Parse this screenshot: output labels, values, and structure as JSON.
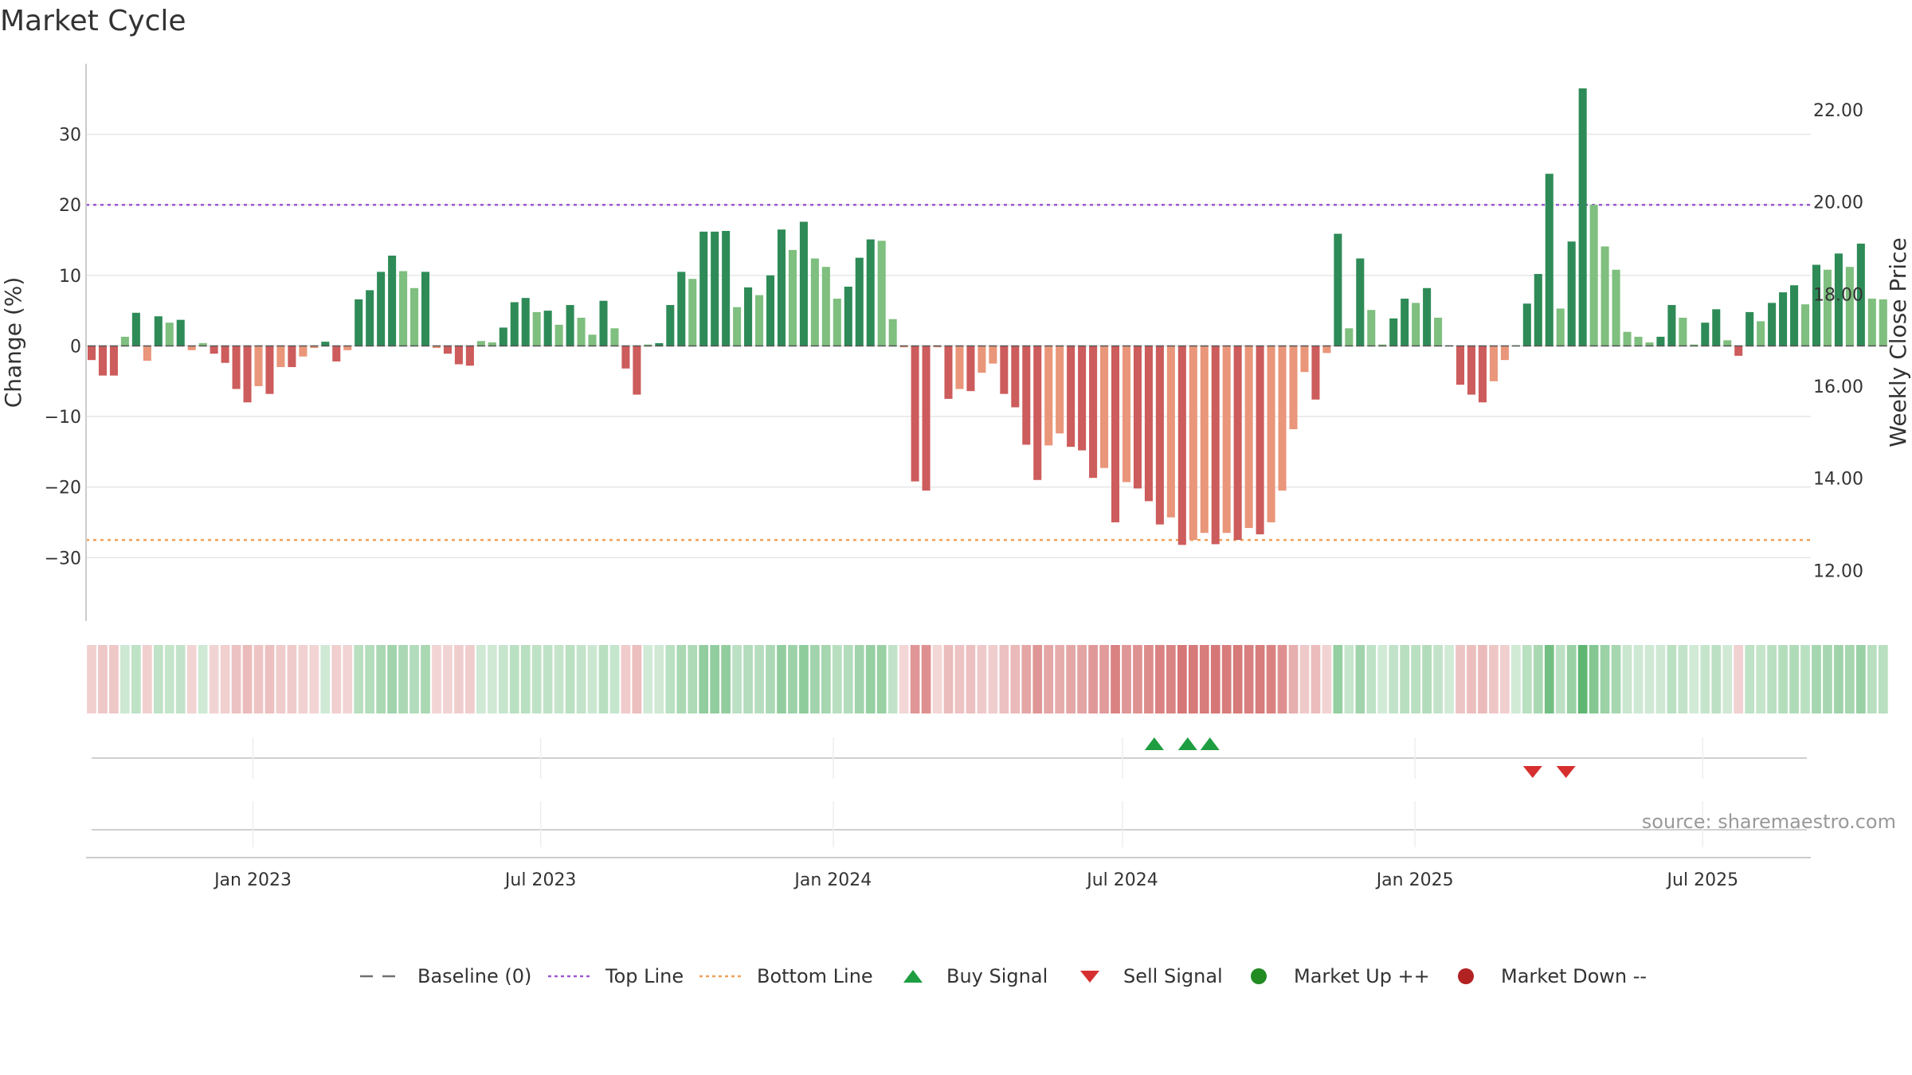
{
  "chart_data": {
    "type": "bar",
    "title": "Market Cycle",
    "ylabel_left": "Change (%)",
    "ylabel_right": "Weekly Close Price",
    "ylim": [
      -39,
      40
    ],
    "yticks": [
      30,
      20,
      10,
      0,
      -10,
      -20,
      -30
    ],
    "ytick_labels": [
      "30",
      "20",
      "10",
      "0",
      "−10",
      "−20",
      "−30"
    ],
    "y2lim": [
      10.9,
      23.0
    ],
    "y2ticks": [
      22,
      20,
      18,
      16,
      14,
      12
    ],
    "y2tick_labels": [
      "22.00",
      "20.00",
      "18.00",
      "16.00",
      "14.00",
      "12.00"
    ],
    "top_line": 20,
    "bottom_line": -27.5,
    "x_start": "2022-09-18",
    "x_end": "2025-09-07",
    "xticks": [
      {
        "date": "2023-01-01",
        "label": "Jan 2023"
      },
      {
        "date": "2023-07-01",
        "label": "Jul 2023"
      },
      {
        "date": "2024-01-01",
        "label": "Jan 2024"
      },
      {
        "date": "2024-07-01",
        "label": "Jul 2024"
      },
      {
        "date": "2025-01-01",
        "label": "Jan 2025"
      },
      {
        "date": "2025-07-01",
        "label": "Jul 2025"
      }
    ],
    "first_week": "2022-09-18",
    "weekly_change": [
      -2,
      -4.2,
      -4.2,
      1.3,
      4.7,
      -2.1,
      4.2,
      3.3,
      3.7,
      -0.6,
      0.4,
      -1.1,
      -2.4,
      -6.1,
      -8.0,
      -5.7,
      -6.8,
      -3.0,
      -3.0,
      -1.5,
      -0.3,
      0.6,
      -2.2,
      -0.6,
      6.6,
      7.9,
      10.5,
      12.8,
      10.6,
      8.2,
      10.5,
      -0.3,
      -1.1,
      -2.6,
      -2.8,
      0.7,
      0.5,
      2.6,
      6.2,
      6.8,
      4.8,
      5.0,
      3.0,
      5.8,
      4.0,
      1.6,
      6.4,
      2.5,
      -3.2,
      -6.9,
      0.2,
      0.4,
      5.8,
      10.5,
      9.5,
      16.2,
      16.2,
      16.3,
      5.5,
      8.3,
      7.2,
      10.0,
      16.5,
      13.6,
      17.6,
      12.4,
      11.2,
      6.7,
      8.4,
      12.5,
      15.1,
      14.9,
      3.8,
      -0.2,
      -19.2,
      -20.5,
      -0.2,
      -7.5,
      -6.1,
      -6.4,
      -3.8,
      -2.5,
      -6.8,
      -8.7,
      -14.0,
      -19.0,
      -14.1,
      -12.4,
      -14.3,
      -14.8,
      -18.7,
      -17.3,
      -25.0,
      -19.3,
      -20.2,
      -22.0,
      -25.3,
      -24.3,
      -28.2,
      -27.5,
      -26.5,
      -28.1,
      -26.5,
      -27.5,
      -25.8,
      -26.7,
      -25.0,
      -20.5,
      -11.8,
      -3.7,
      -7.6,
      -1.0,
      15.9,
      2.5,
      12.4,
      5.1,
      0.2,
      3.9,
      6.7,
      6.1,
      8.2,
      4.0,
      0.1,
      -5.5,
      -6.9,
      -8.0,
      -5.0,
      -2.0,
      0.1,
      6.0,
      10.2,
      24.4,
      5.3,
      14.8,
      36.5,
      20.0,
      14.1,
      10.8,
      2.0,
      1.3,
      0.5,
      1.3,
      5.8,
      4.0,
      0.2,
      3.3,
      5.2,
      0.8,
      -1.4,
      4.8,
      3.5,
      6.1,
      7.6,
      8.6,
      5.9,
      11.5,
      10.8,
      13.1,
      11.2,
      14.5,
      6.7,
      6.6
    ],
    "buy_signals": [
      "2024-07-21",
      "2024-08-11",
      "2024-08-25"
    ],
    "sell_signals": [
      "2025-03-16",
      "2025-04-06"
    ],
    "baseline": 0
  },
  "legend": {
    "items": [
      {
        "label": "Baseline (0)",
        "marker": "dash",
        "color": "#707070"
      },
      {
        "label": "Top Line",
        "marker": "dotted",
        "color": "#9b59d0"
      },
      {
        "label": "Bottom Line",
        "marker": "dotted",
        "color": "#f0a05a"
      },
      {
        "label": "Buy Signal",
        "marker": "triangle-up",
        "color": "#1e9e40"
      },
      {
        "label": "Sell Signal",
        "marker": "triangle-down",
        "color": "#d62f2f"
      },
      {
        "label": "Market Up ++",
        "marker": "circle",
        "color": "#228b22"
      },
      {
        "label": "Market Down --",
        "marker": "circle",
        "color": "#b22222"
      }
    ]
  },
  "source": "source: sharemaestro.com",
  "colors": {
    "up_strong": "#2e8b57",
    "up_light": "#7fbf7f",
    "down_strong": "#cd5c5c",
    "down_light": "#e9967a",
    "top_line": "#9b59d0",
    "bottom_line": "#f0a05a",
    "buy": "#1e9e40",
    "sell": "#d62f2f"
  }
}
